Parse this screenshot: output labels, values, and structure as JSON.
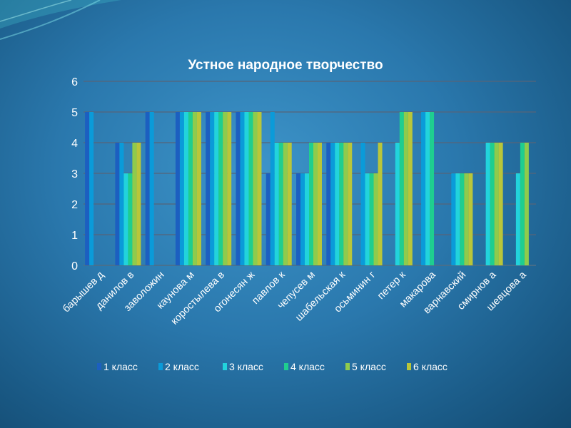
{
  "chart_data": {
    "type": "bar",
    "title": "Устное народное творчество",
    "xlabel": "",
    "ylabel": "",
    "ylim": [
      0,
      6
    ],
    "yticks": [
      "0",
      "1",
      "2",
      "3",
      "4",
      "5",
      "6"
    ],
    "grid": true,
    "legend_position": "bottom",
    "categories": [
      "барышев д",
      "данилов в",
      "заволожин",
      "каунова м",
      "коростылева в",
      "огонесян ж",
      "павлов к",
      "чепусев м",
      "шабельская к",
      "осьминин г",
      "петер к",
      "макарова",
      "варнавский",
      "смирнов а",
      "шевцова а"
    ],
    "series": [
      {
        "name": "1 класс",
        "color": "#1c5fc0",
        "values": [
          5,
          4,
          5,
          5,
          5,
          5,
          3,
          3,
          4,
          0,
          0,
          0,
          0,
          0,
          0
        ]
      },
      {
        "name": "2  класс",
        "color": "#0a9bd9",
        "values": [
          5,
          4,
          5,
          5,
          5,
          5,
          5,
          3,
          4,
          4,
          0,
          5,
          3,
          0,
          0
        ]
      },
      {
        "name": "3 класс",
        "color": "#22d3dc",
        "values": [
          0,
          3,
          0,
          5,
          5,
          5,
          4,
          3,
          4,
          3,
          4,
          5,
          3,
          4,
          3
        ]
      },
      {
        "name": "4 класс",
        "color": "#1fce8f",
        "values": [
          0,
          3,
          0,
          5,
          5,
          5,
          4,
          4,
          4,
          3,
          5,
          5,
          3,
          4,
          4
        ]
      },
      {
        "name": "5 класс",
        "color": "#8fcb4c",
        "values": [
          0,
          4,
          0,
          5,
          5,
          5,
          4,
          4,
          4,
          3,
          5,
          0,
          3,
          4,
          4
        ]
      },
      {
        "name": "6 класс",
        "color": "#b9c63a",
        "values": [
          0,
          4,
          0,
          5,
          5,
          5,
          4,
          4,
          4,
          4,
          5,
          0,
          3,
          4,
          0
        ]
      }
    ]
  }
}
